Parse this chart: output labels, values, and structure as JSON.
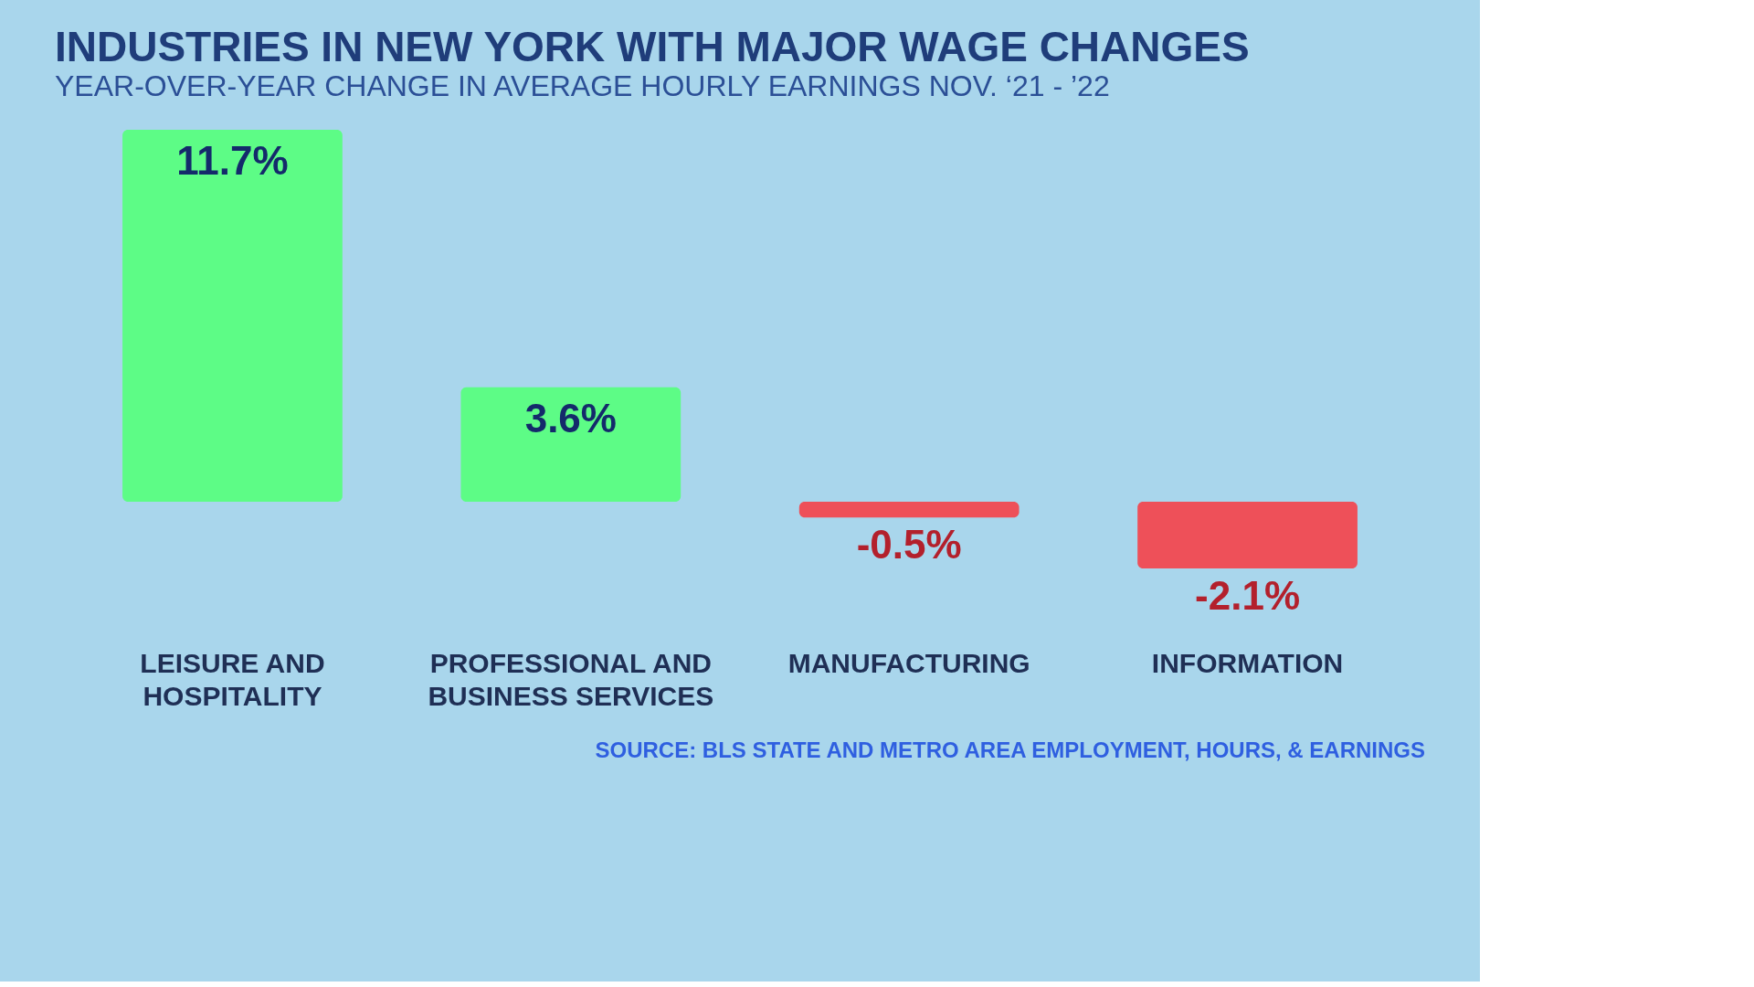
{
  "chart_data": {
    "type": "bar",
    "title": "INDUSTRIES IN NEW YORK WITH MAJOR WAGE CHANGES",
    "subtitle": "YEAR-OVER-YEAR CHANGE IN AVERAGE HOURLY EARNINGS NOV. ‘21 - ’22",
    "categories": [
      "LEISURE AND HOSPITALITY",
      "PROFESSIONAL AND BUSINESS SERVICES",
      "MANUFACTURING",
      "INFORMATION"
    ],
    "values": [
      11.7,
      3.6,
      -0.5,
      -2.1
    ],
    "colors": [
      "#5dfc86",
      "#5dfc86",
      "#ee5059",
      "#ee5059"
    ],
    "value_labels": [
      "11.7%",
      "3.6%",
      "-0.5%",
      "-2.1%"
    ],
    "annotations": [
      "SOURCE: BLS STATE AND METRO AREA EMPLOYMENT, HOURS, & EARNINGS"
    ]
  }
}
